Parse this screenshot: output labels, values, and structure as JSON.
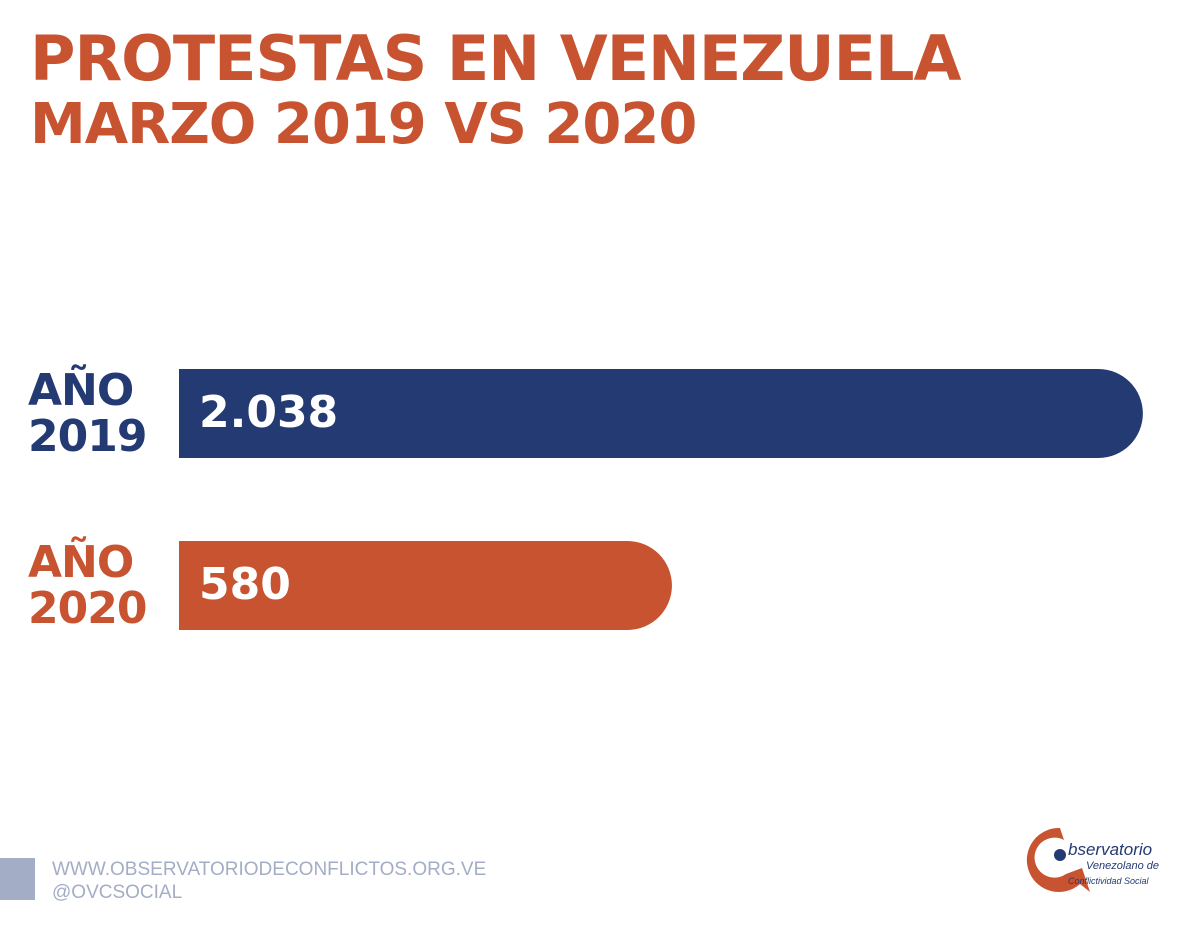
{
  "title_line1": "PROTESTAS EN VENEZUELA",
  "title_line2": "MARZO 2019 VS 2020",
  "chart_data": {
    "type": "bar",
    "orientation": "horizontal",
    "title": "PROTESTAS EN VENEZUELA MARZO 2019 VS 2020",
    "categories": [
      {
        "line1": "AÑO",
        "line2": "2019"
      },
      {
        "line1": "AÑO",
        "line2": "2020"
      }
    ],
    "values": [
      2038,
      580
    ],
    "value_labels": [
      "2.038",
      "580"
    ],
    "colors": [
      "#243a73",
      "#c85330"
    ]
  },
  "footer": {
    "website": "WWW.OBSERVATORIODECONFLICTOS.ORG.VE",
    "social": "@OVCSOCIAL"
  },
  "logo": {
    "line1": "bservatorio",
    "line2": "Venezolano de",
    "line3": "Conflictividad Social"
  }
}
